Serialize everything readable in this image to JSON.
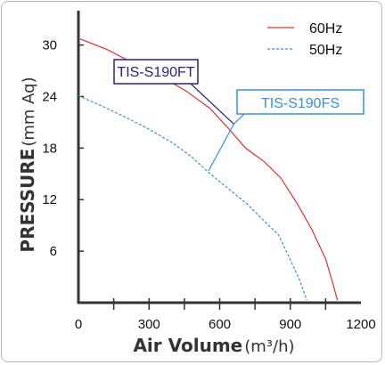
{
  "chart_data": {
    "type": "line",
    "title": "",
    "xlabel": "Air Volume",
    "xlabel_unit": "(m³/h)",
    "ylabel": "PRESSURE",
    "ylabel_unit": "(mm Aq)",
    "xlim": [
      0,
      1200
    ],
    "ylim": [
      0,
      34
    ],
    "x_ticks": [
      0,
      300,
      600,
      900,
      1200
    ],
    "y_ticks": [
      6,
      12,
      18,
      24,
      30
    ],
    "grid": false,
    "legend_position": "top-right",
    "series": [
      {
        "name": "60Hz",
        "color": "#e03030",
        "style": "solid",
        "points": [
          [
            0,
            30.8
          ],
          [
            120,
            29.5
          ],
          [
            240,
            27.8
          ],
          [
            360,
            26.2
          ],
          [
            460,
            24.6
          ],
          [
            560,
            22.6
          ],
          [
            640,
            20.2
          ],
          [
            710,
            18.0
          ],
          [
            790,
            16.4
          ],
          [
            860,
            14.5
          ],
          [
            930,
            11.5
          ],
          [
            990,
            8.6
          ],
          [
            1050,
            5.1
          ],
          [
            1080,
            2.3
          ],
          [
            1100,
            0.3
          ]
        ]
      },
      {
        "name": "50Hz",
        "color": "#3a8fd8",
        "style": "dashed",
        "points": [
          [
            0,
            24.1
          ],
          [
            100,
            22.9
          ],
          [
            200,
            21.6
          ],
          [
            300,
            20.2
          ],
          [
            400,
            18.6
          ],
          [
            480,
            17.0
          ],
          [
            560,
            15.0
          ],
          [
            640,
            13.2
          ],
          [
            720,
            11.4
          ],
          [
            790,
            9.5
          ],
          [
            850,
            7.9
          ],
          [
            900,
            5.0
          ],
          [
            940,
            2.6
          ],
          [
            970,
            0.3
          ]
        ]
      }
    ],
    "annotations": [
      {
        "label": "TIS-S190FT",
        "color": "#2a2470",
        "target": [
          660,
          20.8
        ]
      },
      {
        "label": "TIS-S190FS",
        "color": "#3a8fd8",
        "target": [
          660,
          20.8
        ]
      }
    ]
  }
}
